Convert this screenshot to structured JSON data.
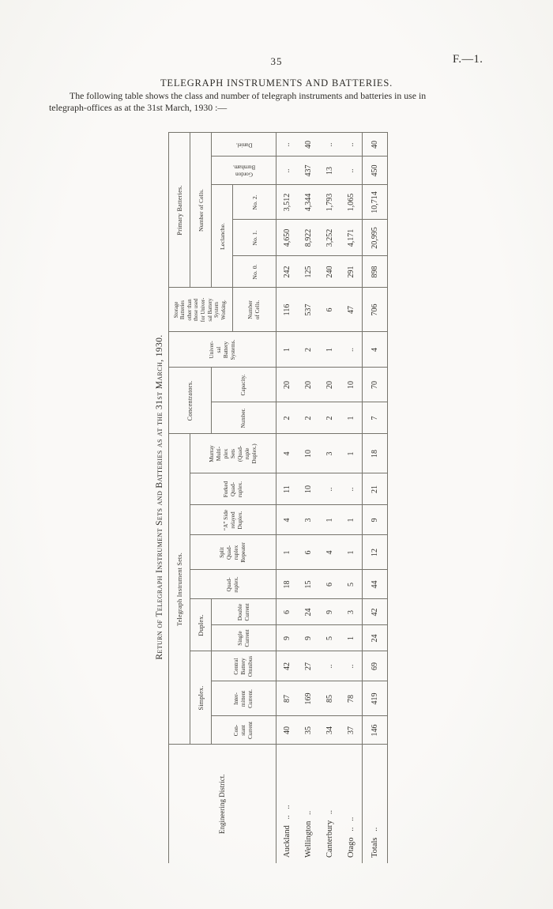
{
  "page": {
    "number": "35",
    "folio": "F.—1.",
    "heading": "TELEGRAPH INSTRUMENTS AND BATTERIES.",
    "intro_line1": "The following table shows the class and number of telegraph instruments and batteries in use in",
    "intro_line2": "telegraph-offices as at the 31st March, 1930 :—"
  },
  "table": {
    "title": "Return of Telegraph Instrument Sets and Batteries as at the 31st March, 1930.",
    "headers": {
      "engineering_district": "Engineering District.",
      "telegraph_instrument_sets": "Telegraph Instrument Sets.",
      "simplex": "Simplex.",
      "duplex": "Duplex.",
      "constant_current": "Con-\nstant\nCurrent",
      "intermittent_current": "Inter-\nmittent\nCurrent.",
      "central_battery_omnibus": "Central\nBattery\nOmnibus",
      "single_current": "Single\nCurrent",
      "double_current": "Double\nCurrent",
      "quadruplex": "Quad-\nruplex.",
      "split_quadruplex_repeater": "Split\nQuad-\nruplex\nRepeater",
      "a_side_relayed_duplex": "“A” Side\nrelayed\nDuplex.",
      "forked_quadruplex": "Forked\nQuad-\nruplex.",
      "murray_multiplex": "Murray\nMulti-\nplex\nSets\n(Quad-\nruple\nDuplex.)",
      "concentrators": "Concentrators.",
      "concentrators_number": "Number.",
      "concentrators_capacity": "Capacity.",
      "universal_battery_systems": "Univer-\nsal\nBattery\nSystems.",
      "storage_batteries": "Storage\nBatteries\nother than\nthose used\nfor Univer-\nsal Battery\nSystem\nWorking.",
      "storage_number_of_cells": "Number\nof Cells.",
      "primary_batteries": "Primary Batteries.",
      "number_of_cells_primary": "Number of Cells.",
      "leclanche": "Leclanche.",
      "no_0": "No. 0.",
      "no_1": "No. 1.",
      "no_2": "No. 2.",
      "gordon_burnham": "Gordon\nBurnham.",
      "daniel": "Daniel."
    },
    "rows": [
      {
        "district": "Auckland .. ..",
        "values": [
          "40",
          "87",
          "42",
          "9",
          "6",
          "18",
          "1",
          "4",
          "11",
          "4",
          "2",
          "20",
          "1",
          "116",
          "242",
          "4,650",
          "3,512",
          "..",
          ".."
        ]
      },
      {
        "district": "Wellington ..",
        "values": [
          "35",
          "169",
          "27",
          "9",
          "24",
          "15",
          "6",
          "3",
          "10",
          "10",
          "2",
          "20",
          "2",
          "537",
          "125",
          "8,922",
          "4,344",
          "437",
          "40"
        ]
      },
      {
        "district": "Canterbury ..",
        "values": [
          "34",
          "85",
          "..",
          "5",
          "9",
          "6",
          "4",
          "1",
          "..",
          "3",
          "2",
          "20",
          "1",
          "6",
          "240",
          "3,252",
          "1,793",
          "13",
          ".."
        ]
      },
      {
        "district": "Otago .. ..",
        "values": [
          "37",
          "78",
          "..",
          "1",
          "3",
          "5",
          "1",
          "1",
          "..",
          "1",
          "1",
          "10",
          "..",
          "47",
          "291",
          "4,171",
          "1,065",
          "..",
          ".."
        ]
      },
      {
        "district": "Totals ..",
        "is_total": true,
        "values": [
          "146",
          "419",
          "69",
          "24",
          "42",
          "44",
          "12",
          "9",
          "21",
          "18",
          "7",
          "70",
          "4",
          "706",
          "898",
          "20,995",
          "10,714",
          "450",
          "40"
        ]
      }
    ]
  }
}
